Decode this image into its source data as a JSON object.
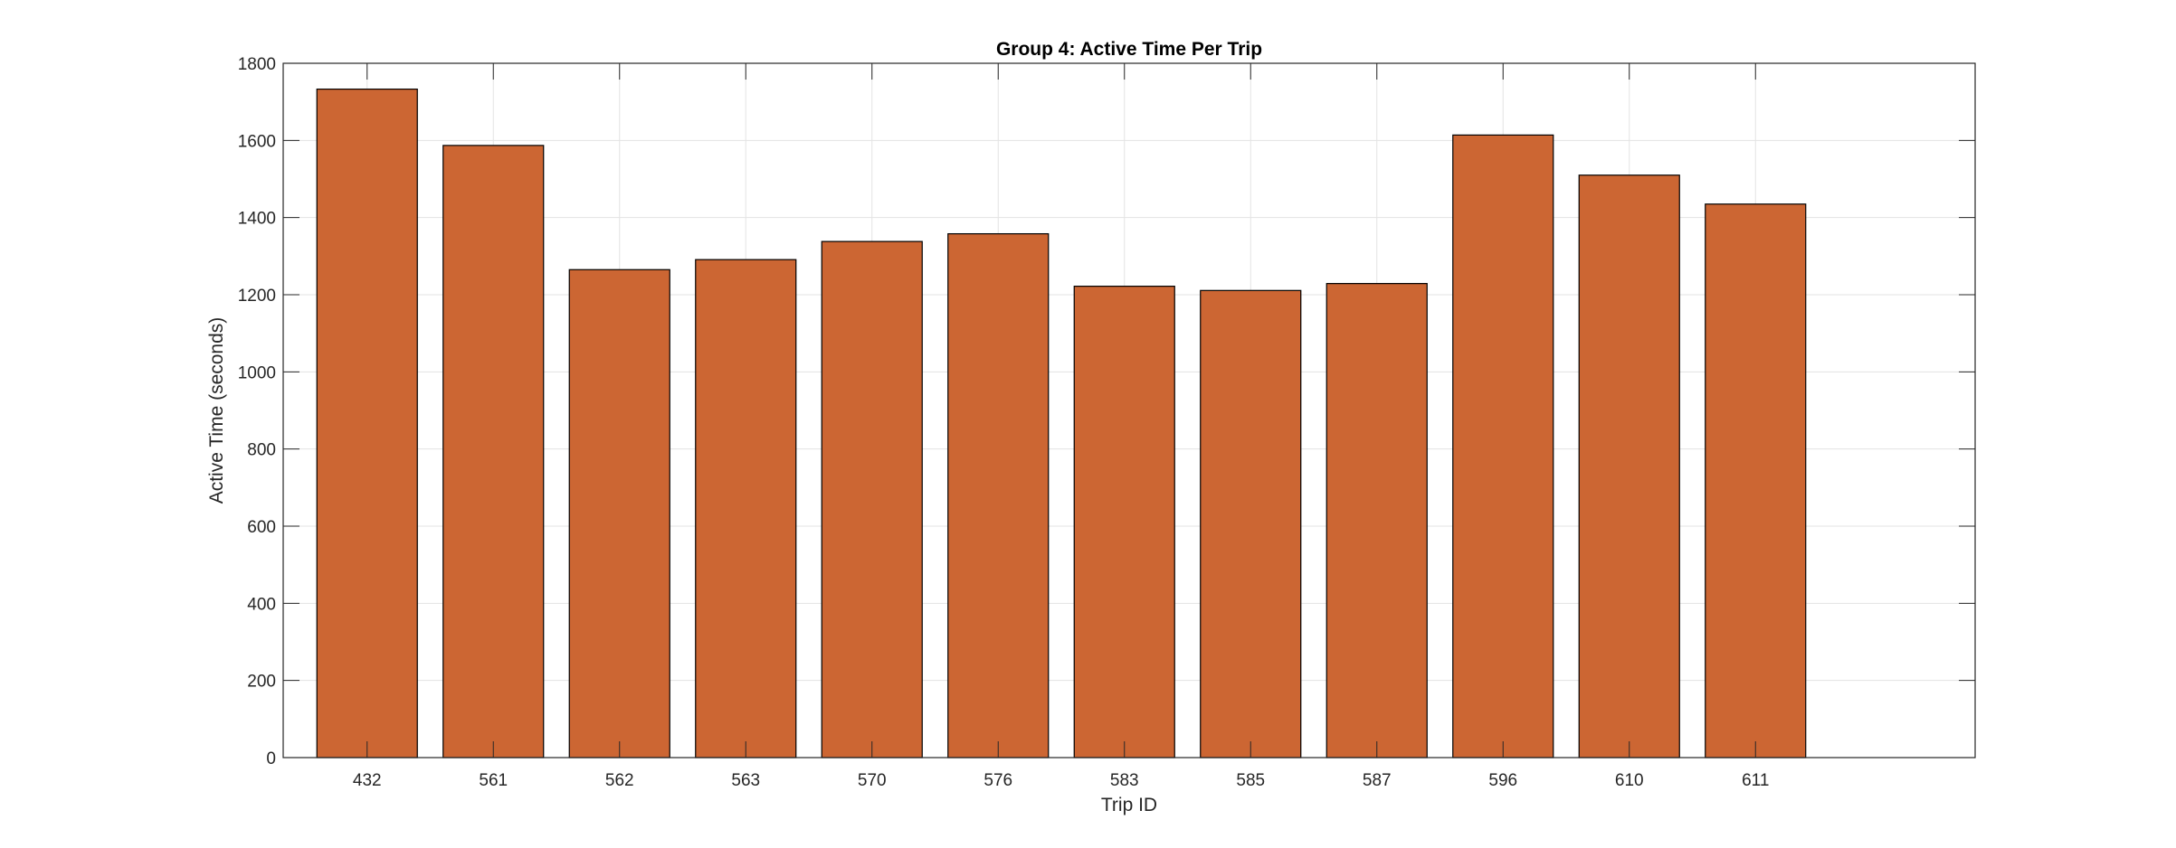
{
  "chart_data": {
    "type": "bar",
    "title": "Group 4: Active Time Per Trip",
    "xlabel": "Trip ID",
    "ylabel": "Active Time (seconds)",
    "categories": [
      "432",
      "561",
      "562",
      "563",
      "570",
      "576",
      "583",
      "585",
      "587",
      "596",
      "610",
      "611"
    ],
    "values": [
      1733,
      1587,
      1265,
      1291,
      1338,
      1358,
      1222,
      1211,
      1229,
      1614,
      1510,
      1435
    ],
    "ylim": [
      0,
      1800
    ],
    "yticks": [
      0,
      200,
      400,
      600,
      800,
      1000,
      1200,
      1400,
      1600,
      1800
    ],
    "grid": true,
    "legend": "none",
    "bar_color": "#cc6633",
    "bar_edge_color": "#000000"
  }
}
